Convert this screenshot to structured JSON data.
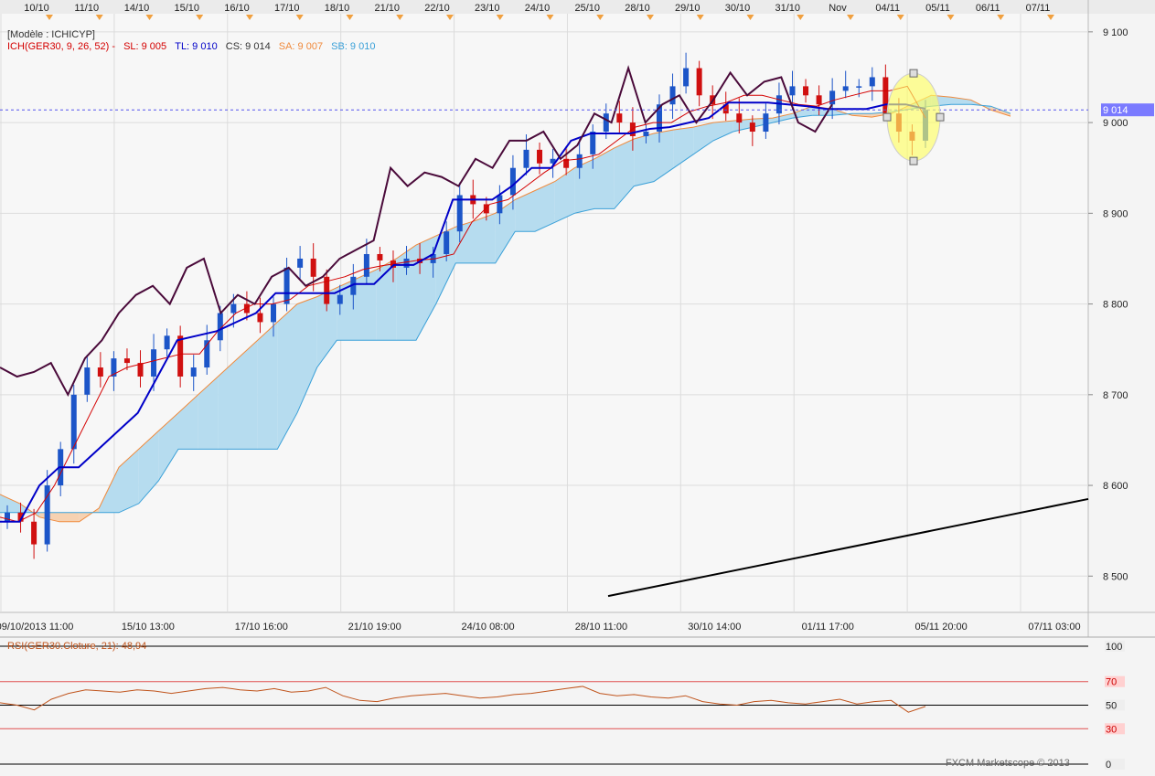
{
  "header": {
    "model_label": "[Modèle : ICHICYP]",
    "indicator_name": "ICH(GER30, 9, 26, 52) -",
    "sl": "SL: 9 005",
    "tl": "TL: 9 010",
    "cs": "CS: 9 014",
    "sa": "SA: 9 007",
    "sb": "SB: 9 010"
  },
  "rsi_label": "RSI(GER30.Cloture, 21): 48,94",
  "watermark": "FXCM Marketscope © 2013",
  "colors": {
    "tenkan": "#d40000",
    "kijun": "#0000c8",
    "chikou": "#4a0a3a",
    "span_a": "#f08a3c",
    "span_b": "#3aa0d8",
    "cloud_bull": "#b6dcef",
    "cloud_bear": "#f6d2b2",
    "candle_up": "#1c55c8",
    "candle_down": "#d01010",
    "rsi_line": "#c0541c",
    "highlight": "#ffff66",
    "price_tag": "#7a7aff"
  },
  "chart_data": {
    "type": "candlestick",
    "instrument": "GER30",
    "price_ylim": [
      8460,
      9120
    ],
    "price_ticks": [
      {
        "value": 9100,
        "label": "9 100"
      },
      {
        "value": 9000,
        "label": "9 000"
      },
      {
        "value": 8900,
        "label": "8 900"
      },
      {
        "value": 8800,
        "label": "8 800"
      },
      {
        "value": 8700,
        "label": "8 700"
      },
      {
        "value": 8600,
        "label": "8 600"
      },
      {
        "value": 8500,
        "label": "8 500"
      }
    ],
    "current_price": {
      "value": 9014,
      "label": "9 014"
    },
    "top_dates": [
      "10/10",
      "11/10",
      "14/10",
      "15/10",
      "16/10",
      "17/10",
      "18/10",
      "21/10",
      "22/10",
      "23/10",
      "24/10",
      "25/10",
      "28/10",
      "29/10",
      "30/10",
      "31/10",
      "Nov",
      "04/11",
      "05/11",
      "06/11",
      "07/11"
    ],
    "bottom_labels": [
      "09/10/2013 11:00",
      "15/10 13:00",
      "17/10 16:00",
      "21/10 19:00",
      "24/10 08:00",
      "28/10 11:00",
      "30/10 14:00",
      "01/11 17:00",
      "05/11 20:00",
      "07/11 03:00"
    ],
    "close": [
      8570,
      8560,
      8535,
      8600,
      8640,
      8700,
      8730,
      8720,
      8740,
      8735,
      8720,
      8750,
      8765,
      8720,
      8730,
      8760,
      8790,
      8800,
      8790,
      8780,
      8800,
      8840,
      8850,
      8830,
      8800,
      8810,
      8830,
      8855,
      8848,
      8840,
      8850,
      8845,
      8855,
      8880,
      8920,
      8910,
      8900,
      8920,
      8950,
      8970,
      8955,
      8960,
      8950,
      8965,
      8990,
      9010,
      9000,
      8985,
      8990,
      9020,
      9040,
      9060,
      9030,
      9020,
      9010,
      9000,
      8990,
      9010,
      9030,
      9040,
      9030,
      9020,
      9035,
      9040,
      9040,
      9050,
      9010,
      8990,
      8980,
      9014
    ],
    "tenkan": [
      8565,
      8560,
      8570,
      8600,
      8640,
      8680,
      8720,
      8730,
      8735,
      8740,
      8745,
      8745,
      8770,
      8790,
      8800,
      8800,
      8805,
      8820,
      8825,
      8830,
      8838,
      8842,
      8845,
      8848,
      8850,
      8855,
      8890,
      8910,
      8915,
      8930,
      8945,
      8958,
      8960,
      8965,
      8980,
      8995,
      9000,
      9000,
      9012,
      9018,
      9022,
      9030,
      9030,
      9025,
      9020,
      9018,
      9025,
      9030,
      9035,
      9035,
      9040,
      9005
    ],
    "kijun": [
      8560,
      8560,
      8600,
      8620,
      8620,
      8640,
      8660,
      8680,
      8720,
      8760,
      8765,
      8770,
      8780,
      8790,
      8812,
      8812,
      8812,
      8812,
      8822,
      8822,
      8843,
      8843,
      8855,
      8915,
      8915,
      8915,
      8930,
      8950,
      8950,
      8980,
      8988,
      8988,
      8988,
      8993,
      8995,
      9000,
      9005,
      9022,
      9022,
      9022,
      9020,
      9018,
      9015,
      9015,
      9015,
      9020,
      9020,
      9015
    ],
    "span_a": [
      8590,
      8580,
      8565,
      8560,
      8560,
      8575,
      8620,
      8640,
      8660,
      8680,
      8700,
      8720,
      8740,
      8760,
      8780,
      8800,
      8808,
      8818,
      8828,
      8838,
      8850,
      8865,
      8875,
      8885,
      8892,
      8900,
      8915,
      8925,
      8935,
      8950,
      8960,
      8972,
      8982,
      8988,
      8992,
      8995,
      9000,
      9002,
      9004,
      9005,
      9010,
      9018,
      9015,
      9008,
      9006,
      9010,
      9020,
      9030,
      9028,
      9025,
      9014,
      9007
    ],
    "span_b": [
      8570,
      8570,
      8570,
      8570,
      8570,
      8570,
      8570,
      8580,
      8605,
      8640,
      8640,
      8640,
      8640,
      8640,
      8640,
      8680,
      8730,
      8760,
      8760,
      8760,
      8760,
      8760,
      8800,
      8845,
      8845,
      8845,
      8880,
      8880,
      8890,
      8900,
      8905,
      8905,
      8930,
      8935,
      8950,
      8965,
      8980,
      8990,
      8995,
      9000,
      9005,
      9008,
      9008,
      9010,
      9010,
      9012,
      9015,
      9018,
      9020,
      9020,
      9018,
      9010
    ],
    "chikou": [
      8730,
      8720,
      8725,
      8735,
      8700,
      8740,
      8760,
      8790,
      8810,
      8820,
      8800,
      8840,
      8850,
      8790,
      8810,
      8800,
      8830,
      8840,
      8820,
      8830,
      8850,
      8860,
      8870,
      8950,
      8930,
      8945,
      8940,
      8930,
      8960,
      8950,
      8980,
      8980,
      8990,
      8960,
      8975,
      9010,
      9000,
      9060,
      9000,
      9020,
      9030,
      9000,
      9025,
      9055,
      9030,
      9045,
      9050,
      9000,
      8990,
      9020
    ],
    "rsi": {
      "title": "RSI(GER30.Cloture, 21): 48,94",
      "ylim": [
        0,
        100
      ],
      "levels": [
        {
          "value": 100,
          "label": "100"
        },
        {
          "value": 70,
          "label": "70"
        },
        {
          "value": 50,
          "label": "50"
        },
        {
          "value": 30,
          "label": "30"
        },
        {
          "value": 0,
          "label": "0"
        }
      ],
      "values": [
        52,
        50,
        46,
        55,
        60,
        63,
        62,
        61,
        63,
        62,
        60,
        62,
        64,
        65,
        63,
        62,
        64,
        61,
        62,
        65,
        58,
        54,
        53,
        56,
        58,
        59,
        60,
        58,
        56,
        57,
        59,
        60,
        62,
        64,
        66,
        60,
        58,
        59,
        57,
        56,
        58,
        53,
        51,
        50,
        53,
        54,
        52,
        51,
        53,
        55,
        51,
        53,
        54,
        44,
        48.94
      ]
    }
  }
}
